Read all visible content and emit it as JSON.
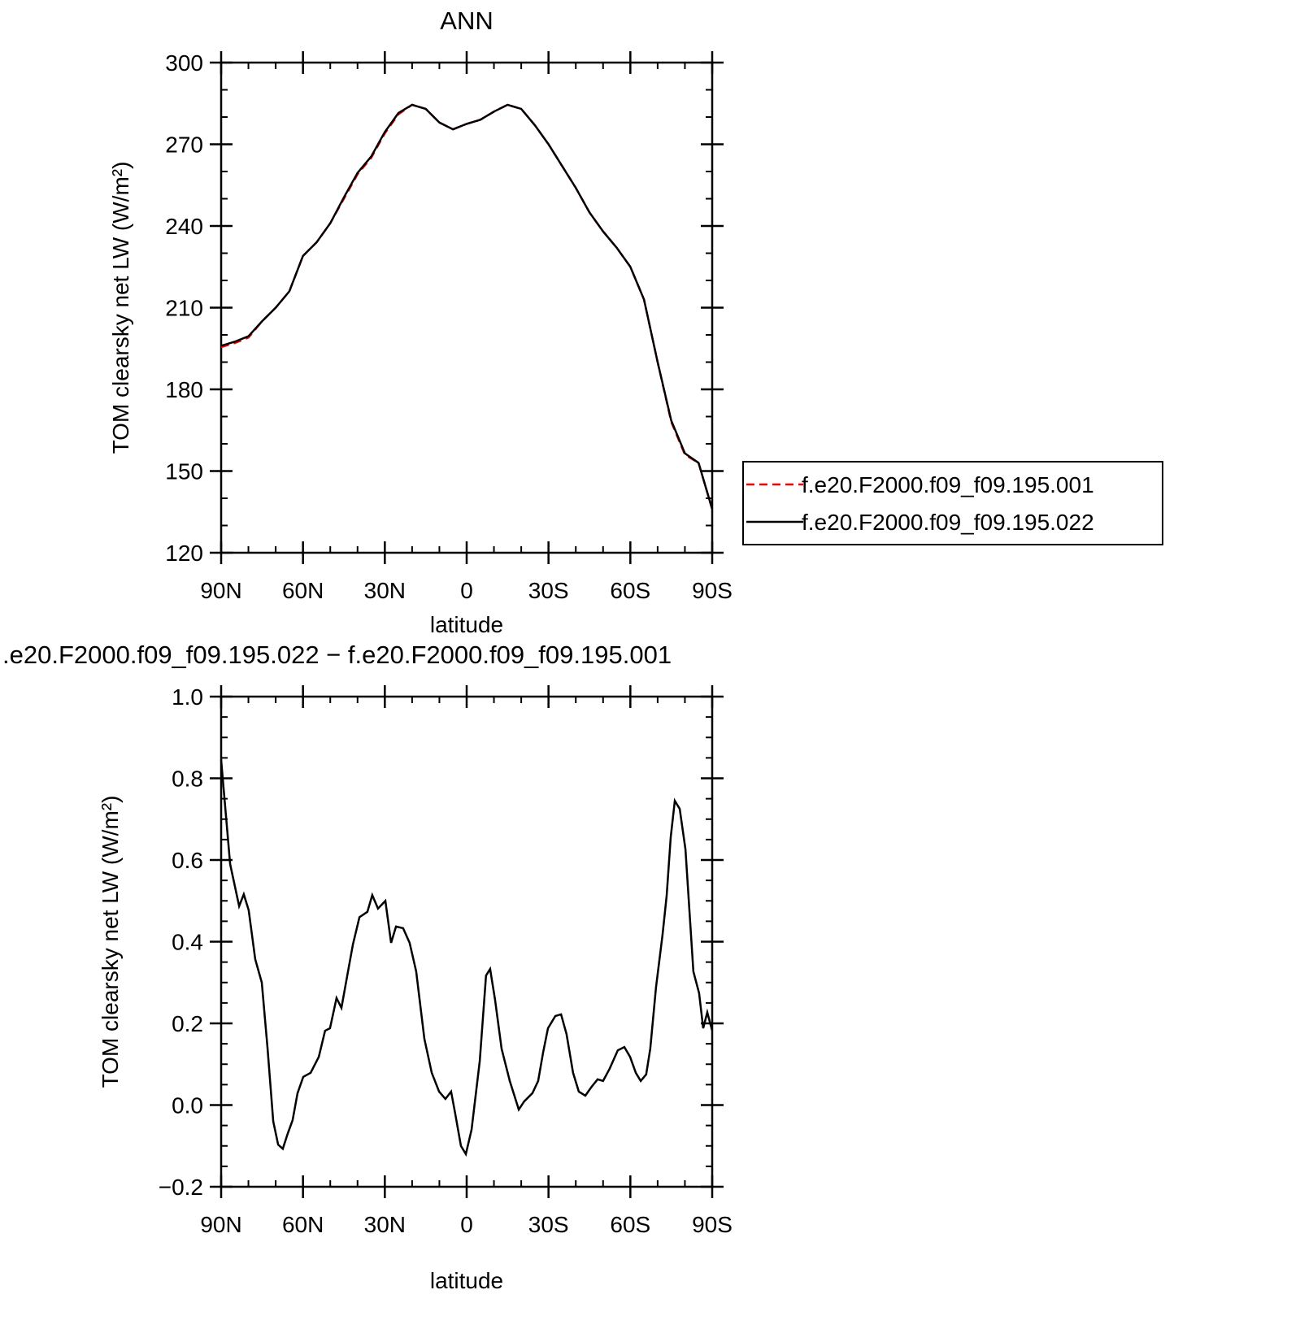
{
  "chart_data": [
    {
      "type": "line",
      "title": "ANN",
      "xlabel": "latitude",
      "ylabel": "TOM clearsky net LW (W/m²)",
      "legend": "right",
      "x": [
        90,
        85,
        80,
        75,
        70,
        65,
        60,
        55,
        50,
        45,
        40,
        35,
        30,
        25,
        20,
        15,
        10,
        5,
        0,
        -5,
        -10,
        -15,
        -20,
        -25,
        -30,
        -35,
        -40,
        -45,
        -50,
        -55,
        -60,
        -65,
        -70,
        -75,
        -80,
        -85,
        -90
      ],
      "series": [
        {
          "name": "f.e20.F2000.f09_f09.195.001",
          "color": "#ff0000",
          "line_style": "dashed",
          "values": [
            195.5,
            197,
            199,
            205,
            210,
            216,
            229,
            234,
            241,
            250,
            259,
            265,
            274,
            281,
            284.5,
            283,
            278,
            275.5,
            277.5,
            279,
            282,
            284.5,
            283,
            277,
            270,
            262,
            254,
            245,
            238,
            232,
            225,
            213,
            190,
            168,
            156,
            153,
            136
          ]
        },
        {
          "name": "f.e20.F2000.f09_f09.195.022",
          "color": "#000000",
          "line_style": "solid",
          "values": [
            196,
            197.5,
            199.5,
            205,
            210,
            216,
            229,
            234,
            241,
            250.5,
            259.5,
            265.5,
            274.5,
            281.5,
            284.5,
            283,
            278,
            275.5,
            277.5,
            279,
            282,
            284.5,
            283,
            277,
            270,
            262,
            254,
            245,
            238,
            232,
            225,
            213,
            190,
            168.5,
            156.5,
            153,
            136
          ]
        }
      ],
      "xlim": [
        90,
        -90
      ],
      "ylim": [
        120,
        300
      ],
      "xticks": [
        {
          "value": 90,
          "label": "90N"
        },
        {
          "value": 60,
          "label": "60N"
        },
        {
          "value": 30,
          "label": "30N"
        },
        0,
        {
          "value": -30,
          "label": "30S"
        },
        {
          "value": -60,
          "label": "60S"
        },
        {
          "value": -90,
          "label": "90S"
        }
      ],
      "yticks": [
        120,
        150,
        180,
        210,
        240,
        270,
        300
      ]
    },
    {
      "type": "line",
      "title": ".e20.F2000.f09_f09.195.022 − f.e20.F2000.f09_f09.195.001",
      "xlabel": "latitude",
      "ylabel": "TOM clearsky net LW (W/m²)",
      "x": [
        90,
        86.7,
        83.4,
        81.7,
        79.9,
        77.5,
        75.1,
        73,
        70.9,
        69.1,
        67.4,
        65.6,
        63.8,
        62,
        59.9,
        57.2,
        54.2,
        51.9,
        50.1,
        47.7,
        45.9,
        43.5,
        41.7,
        39.3,
        36.4,
        34.6,
        32.5,
        29.8,
        27.7,
        25.9,
        23.3,
        20.9,
        18.5,
        15.5,
        12.8,
        10.1,
        7.8,
        5.7,
        4.2,
        2.1,
        0.3,
        -1.8,
        -4.8,
        -7.1,
        -8.6,
        -10.4,
        -12.8,
        -15.8,
        -19.1,
        -21.1,
        -24.1,
        -26.2,
        -28,
        -29.8,
        -32.5,
        -34.6,
        -36.6,
        -39,
        -41.1,
        -43.5,
        -45.6,
        -48,
        -50,
        -52.4,
        -55.4,
        -57.8,
        -59.9,
        -62,
        -63.8,
        -65.8,
        -67.3,
        -69.4,
        -71.8,
        -73.3,
        -74.8,
        -76.3,
        -78.1,
        -80.2,
        -83.1,
        -85.2,
        -86.7,
        -88.2,
        -90
      ],
      "series": [
        {
          "color": "#000000",
          "line_style": "solid",
          "values": [
            0.845,
            0.59,
            0.487,
            0.516,
            0.477,
            0.357,
            0.3,
            0.14,
            -0.04,
            -0.097,
            -0.107,
            -0.07,
            -0.037,
            0.029,
            0.069,
            0.079,
            0.118,
            0.182,
            0.188,
            0.262,
            0.238,
            0.327,
            0.393,
            0.46,
            0.473,
            0.514,
            0.481,
            0.5,
            0.397,
            0.437,
            0.433,
            0.397,
            0.327,
            0.162,
            0.079,
            0.033,
            0.015,
            0.033,
            -0.021,
            -0.1,
            -0.12,
            -0.06,
            0.108,
            0.317,
            0.333,
            0.258,
            0.138,
            0.059,
            -0.011,
            0.009,
            0.029,
            0.059,
            0.128,
            0.188,
            0.218,
            0.222,
            0.174,
            0.079,
            0.033,
            0.023,
            0.043,
            0.063,
            0.059,
            0.089,
            0.134,
            0.142,
            0.118,
            0.079,
            0.059,
            0.075,
            0.138,
            0.288,
            0.417,
            0.512,
            0.656,
            0.745,
            0.725,
            0.626,
            0.327,
            0.274,
            0.188,
            0.227,
            0.182
          ]
        }
      ],
      "xlim": [
        90,
        -90
      ],
      "ylim": [
        -0.2,
        1.0
      ],
      "xticks": [
        {
          "value": 90,
          "label": "90N"
        },
        {
          "value": 60,
          "label": "60N"
        },
        {
          "value": 30,
          "label": "30N"
        },
        0,
        {
          "value": -30,
          "label": "30S"
        },
        {
          "value": -60,
          "label": "60S"
        },
        {
          "value": -90,
          "label": "90S"
        }
      ],
      "yticks": [
        {
          "value": -0.2,
          "label": "−0.2"
        },
        {
          "value": 0,
          "label": "0.0"
        },
        0.2,
        0.4,
        0.6,
        0.8,
        {
          "value": 1,
          "label": "1.0"
        }
      ]
    }
  ]
}
